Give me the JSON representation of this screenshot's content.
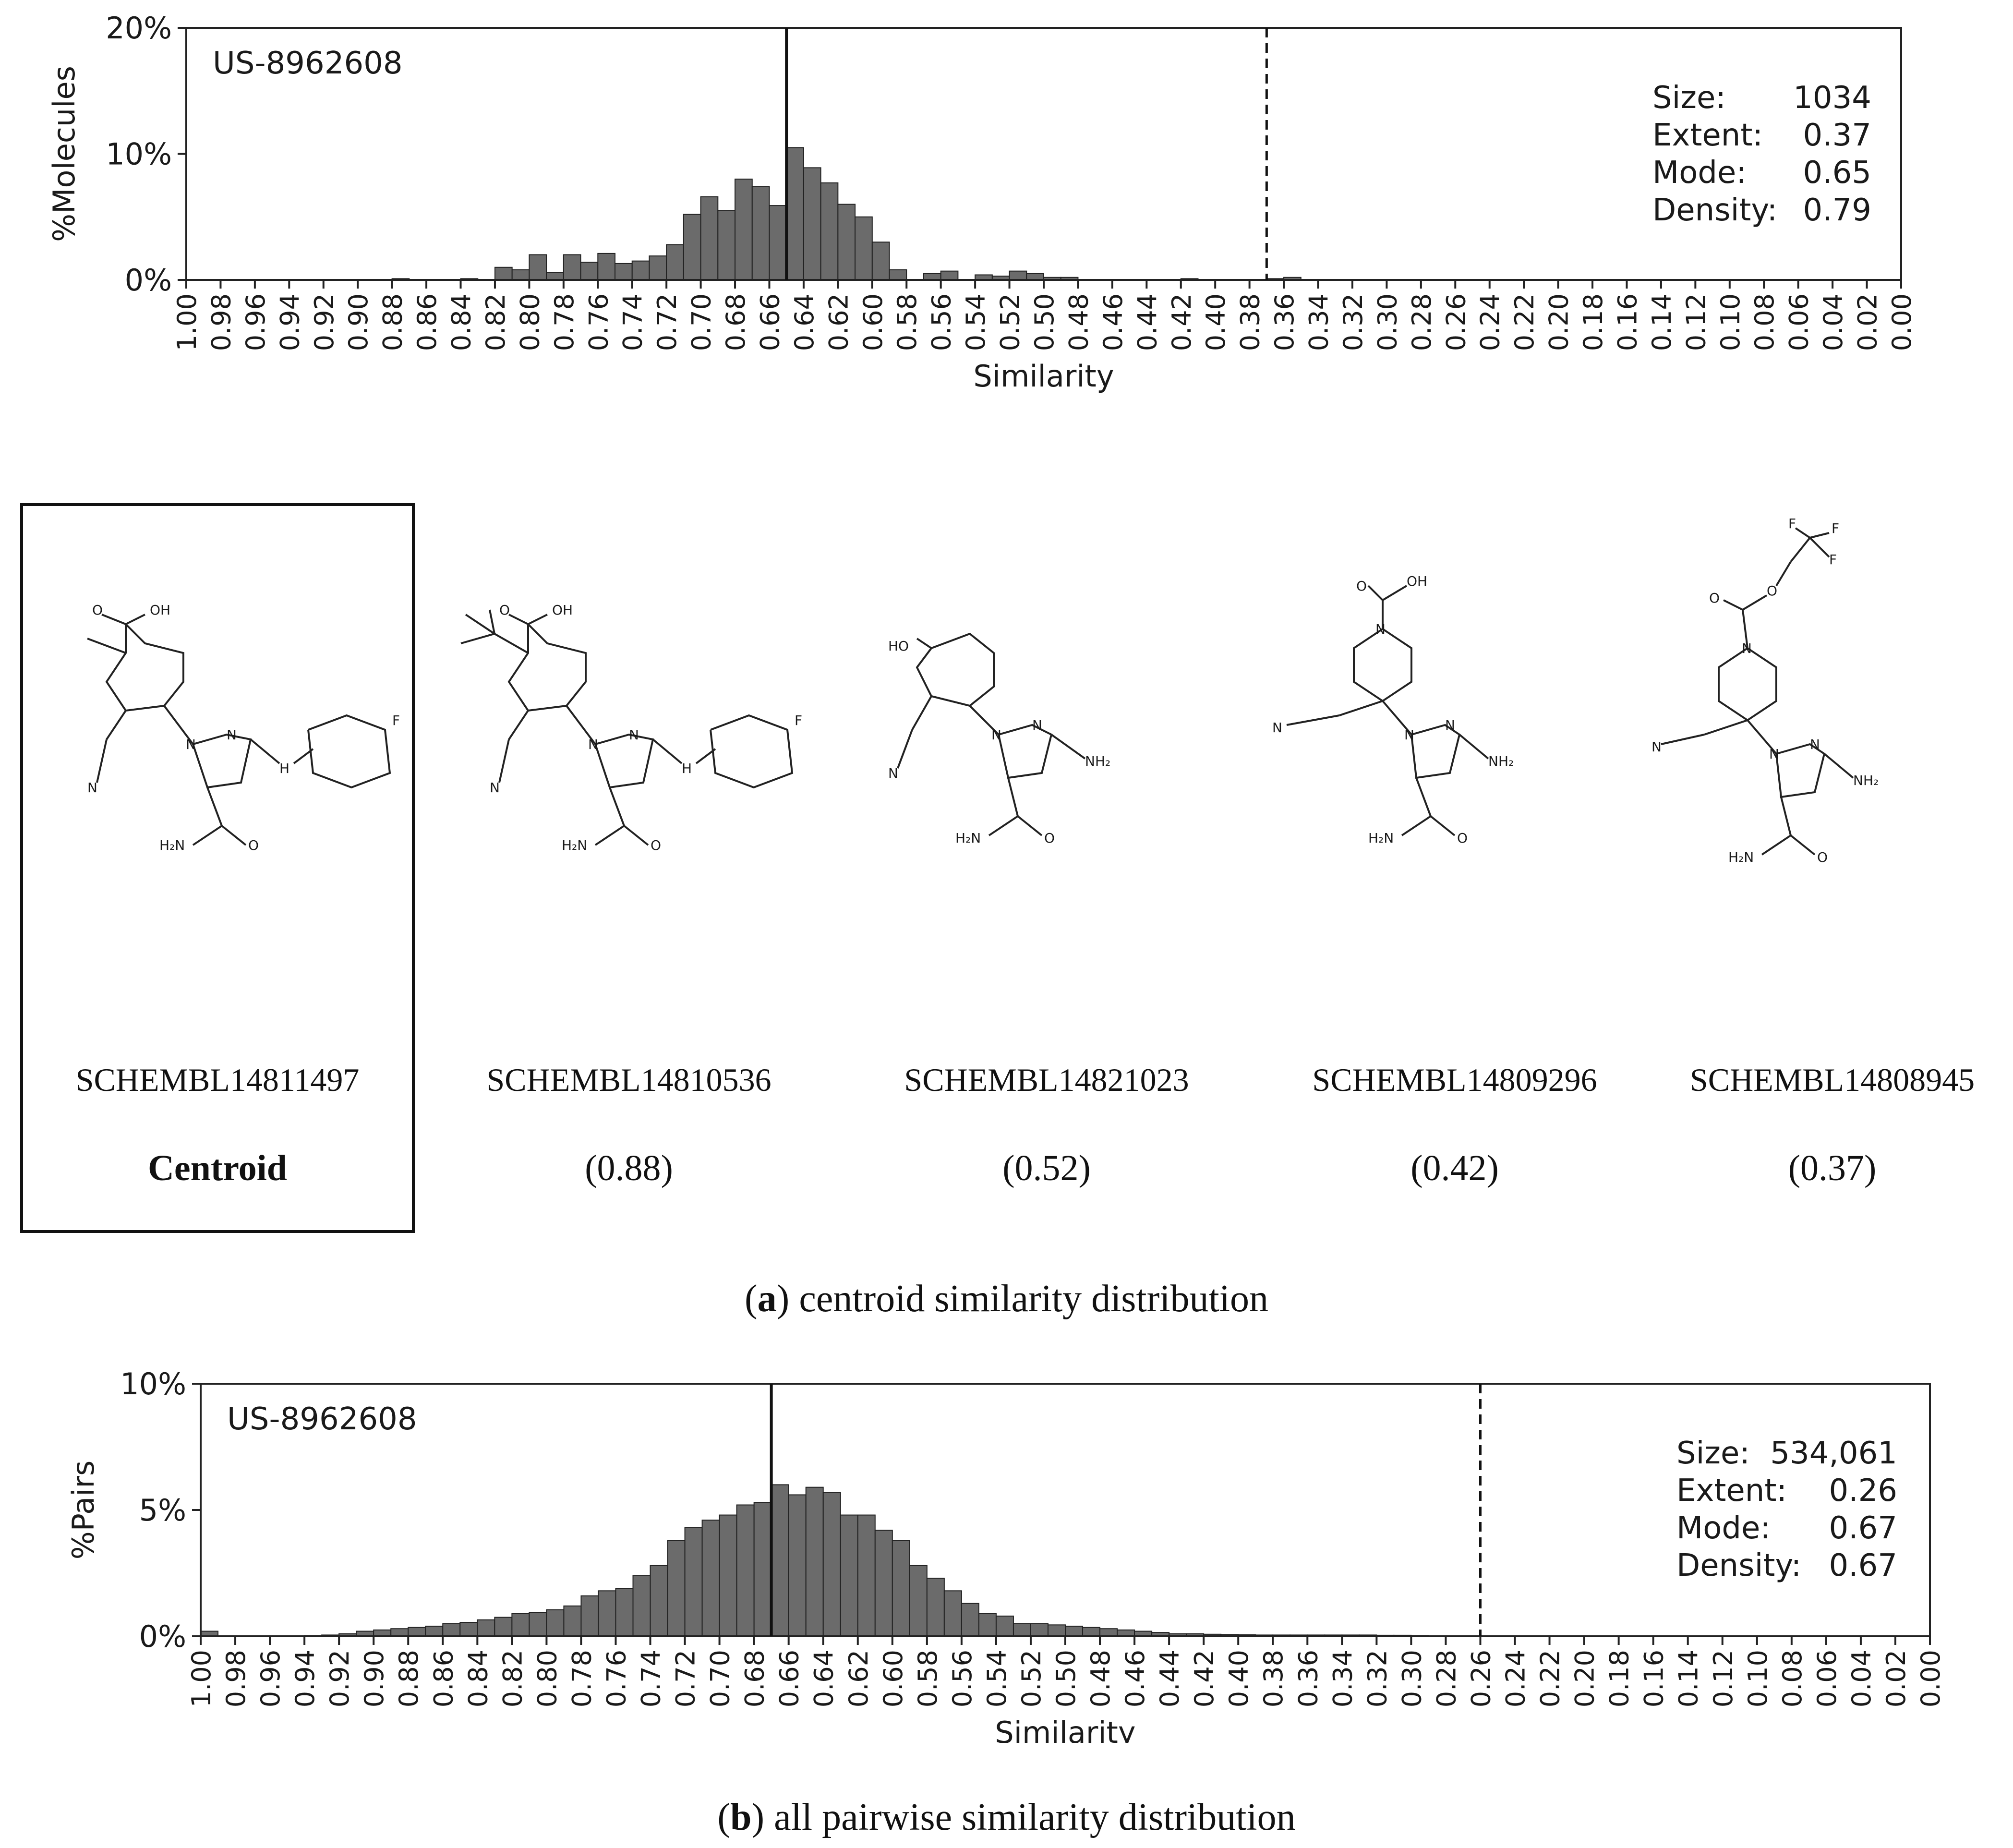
{
  "chart_data": [
    {
      "type": "bar",
      "title": "US-8962608",
      "xlabel": "Similarity",
      "ylabel": "%Molecules",
      "x_direction": "descending",
      "xlim": [
        1.0,
        0.0
      ],
      "ylim": [
        0,
        20
      ],
      "yticks": [
        "0%",
        "10%",
        "20%"
      ],
      "xticks": [
        "1.00",
        "0.98",
        "0.96",
        "0.94",
        "0.92",
        "0.90",
        "0.88",
        "0.86",
        "0.84",
        "0.82",
        "0.80",
        "0.78",
        "0.76",
        "0.74",
        "0.72",
        "0.70",
        "0.68",
        "0.66",
        "0.64",
        "0.62",
        "0.60",
        "0.58",
        "0.56",
        "0.54",
        "0.52",
        "0.50",
        "0.48",
        "0.46",
        "0.44",
        "0.42",
        "0.40",
        "0.38",
        "0.36",
        "0.34",
        "0.32",
        "0.30",
        "0.28",
        "0.26",
        "0.24",
        "0.22",
        "0.20",
        "0.18",
        "0.16",
        "0.14",
        "0.12",
        "0.10",
        "0.08",
        "0.06",
        "0.04",
        "0.02",
        "0.00"
      ],
      "bin_width": 0.01,
      "bins_start": [
        0.88,
        0.84,
        0.82,
        0.81,
        0.8,
        0.79,
        0.78,
        0.77,
        0.76,
        0.75,
        0.74,
        0.73,
        0.72,
        0.71,
        0.7,
        0.69,
        0.68,
        0.67,
        0.66,
        0.65,
        0.64,
        0.63,
        0.62,
        0.61,
        0.6,
        0.59,
        0.57,
        0.56,
        0.54,
        0.53,
        0.52,
        0.51,
        0.5,
        0.49,
        0.42,
        0.37,
        0.36
      ],
      "values": [
        0.1,
        0.1,
        1.0,
        0.8,
        2.0,
        0.6,
        2.0,
        1.4,
        2.1,
        1.3,
        1.5,
        1.9,
        2.8,
        5.2,
        6.6,
        5.5,
        8.0,
        7.4,
        5.9,
        10.5,
        8.9,
        7.7,
        6.0,
        5.0,
        3.0,
        0.8,
        0.5,
        0.7,
        0.4,
        0.3,
        0.7,
        0.5,
        0.2,
        0.2,
        0.1,
        0.1,
        0.2
      ],
      "solid_line": 0.65,
      "dashed_line": 0.37,
      "stats": [
        {
          "label": "Size:",
          "value": "1034"
        },
        {
          "label": "Extent:",
          "value": "0.37"
        },
        {
          "label": "Mode:",
          "value": "0.65"
        },
        {
          "label": "Density:",
          "value": "0.79"
        }
      ]
    },
    {
      "type": "bar",
      "title": "US-8962608",
      "xlabel": "Similarity",
      "ylabel": "%Pairs",
      "x_direction": "descending",
      "xlim": [
        1.0,
        0.0
      ],
      "ylim": [
        0,
        10
      ],
      "yticks": [
        "0%",
        "5%",
        "10%"
      ],
      "xticks": [
        "1.00",
        "0.98",
        "0.96",
        "0.94",
        "0.92",
        "0.90",
        "0.88",
        "0.86",
        "0.84",
        "0.82",
        "0.80",
        "0.78",
        "0.76",
        "0.74",
        "0.72",
        "0.70",
        "0.68",
        "0.66",
        "0.64",
        "0.62",
        "0.60",
        "0.58",
        "0.56",
        "0.54",
        "0.52",
        "0.50",
        "0.48",
        "0.46",
        "0.44",
        "0.42",
        "0.40",
        "0.38",
        "0.36",
        "0.34",
        "0.32",
        "0.30",
        "0.28",
        "0.26",
        "0.24",
        "0.22",
        "0.20",
        "0.18",
        "0.16",
        "0.14",
        "0.12",
        "0.10",
        "0.08",
        "0.06",
        "0.04",
        "0.02",
        "0.00"
      ],
      "bin_width": 0.01,
      "bins_start": [
        1.0,
        0.94,
        0.93,
        0.92,
        0.91,
        0.9,
        0.89,
        0.88,
        0.87,
        0.86,
        0.85,
        0.84,
        0.83,
        0.82,
        0.81,
        0.8,
        0.79,
        0.78,
        0.77,
        0.76,
        0.75,
        0.74,
        0.73,
        0.72,
        0.71,
        0.7,
        0.69,
        0.68,
        0.67,
        0.66,
        0.65,
        0.64,
        0.63,
        0.62,
        0.61,
        0.6,
        0.59,
        0.58,
        0.57,
        0.56,
        0.55,
        0.54,
        0.53,
        0.52,
        0.51,
        0.5,
        0.49,
        0.48,
        0.47,
        0.46,
        0.45,
        0.44,
        0.43,
        0.42,
        0.41,
        0.4,
        0.39,
        0.38,
        0.37,
        0.36,
        0.35,
        0.34,
        0.33,
        0.32,
        0.31,
        0.3
      ],
      "values": [
        0.2,
        0.03,
        0.05,
        0.1,
        0.2,
        0.25,
        0.3,
        0.35,
        0.4,
        0.5,
        0.55,
        0.65,
        0.75,
        0.9,
        0.95,
        1.05,
        1.2,
        1.6,
        1.8,
        1.9,
        2.4,
        2.8,
        3.8,
        4.3,
        4.6,
        4.8,
        5.2,
        5.3,
        6.0,
        5.6,
        5.9,
        5.7,
        4.8,
        4.8,
        4.2,
        3.8,
        2.8,
        2.3,
        1.8,
        1.3,
        0.9,
        0.8,
        0.5,
        0.5,
        0.45,
        0.4,
        0.35,
        0.3,
        0.25,
        0.2,
        0.15,
        0.1,
        0.1,
        0.08,
        0.07,
        0.06,
        0.05,
        0.05,
        0.05,
        0.05,
        0.05,
        0.05,
        0.05,
        0.04,
        0.04,
        0.03
      ],
      "solid_line": 0.67,
      "dashed_line": 0.26,
      "stats": [
        {
          "label": "Size:",
          "value": "534,061"
        },
        {
          "label": "Extent:",
          "value": "0.26"
        },
        {
          "label": "Mode:",
          "value": "0.67"
        },
        {
          "label": "Density:",
          "value": "0.67"
        }
      ]
    }
  ],
  "molecules": [
    {
      "id": "SCHEMBL14811497",
      "similarity": "Centroid",
      "atoms": [
        "O",
        "OH",
        "N",
        "N",
        "N",
        "H",
        "F",
        "H₂N",
        "O"
      ]
    },
    {
      "id": "SCHEMBL14810536",
      "similarity": "(0.88)",
      "atoms": [
        "O",
        "OH",
        "N",
        "N",
        "N",
        "H",
        "F",
        "H₂N",
        "O"
      ]
    },
    {
      "id": "SCHEMBL14821023",
      "similarity": "(0.52)",
      "atoms": [
        "HO",
        "N",
        "N",
        "N",
        "NH₂",
        "H₂N",
        "O"
      ]
    },
    {
      "id": "SCHEMBL14809296",
      "similarity": "(0.42)",
      "atoms": [
        "O",
        "OH",
        "N",
        "N",
        "N",
        "N",
        "NH₂",
        "H₂N",
        "O"
      ]
    },
    {
      "id": "SCHEMBL14808945",
      "similarity": "(0.37)",
      "atoms": [
        "F",
        "F",
        "F",
        "O",
        "O",
        "N",
        "N",
        "N",
        "N",
        "NH₂",
        "H₂N",
        "O"
      ]
    }
  ],
  "captions": {
    "a_label": "a",
    "a_text": "centroid similarity distribution",
    "b_label": "b",
    "b_text": "all pairwise similarity distribution"
  },
  "colors": {
    "bar": "#6b6b6b",
    "bar_edge": "#222222",
    "oxygen": "#e00000",
    "nitrogen": "#3333aa",
    "fluorine": "#c8860a"
  }
}
